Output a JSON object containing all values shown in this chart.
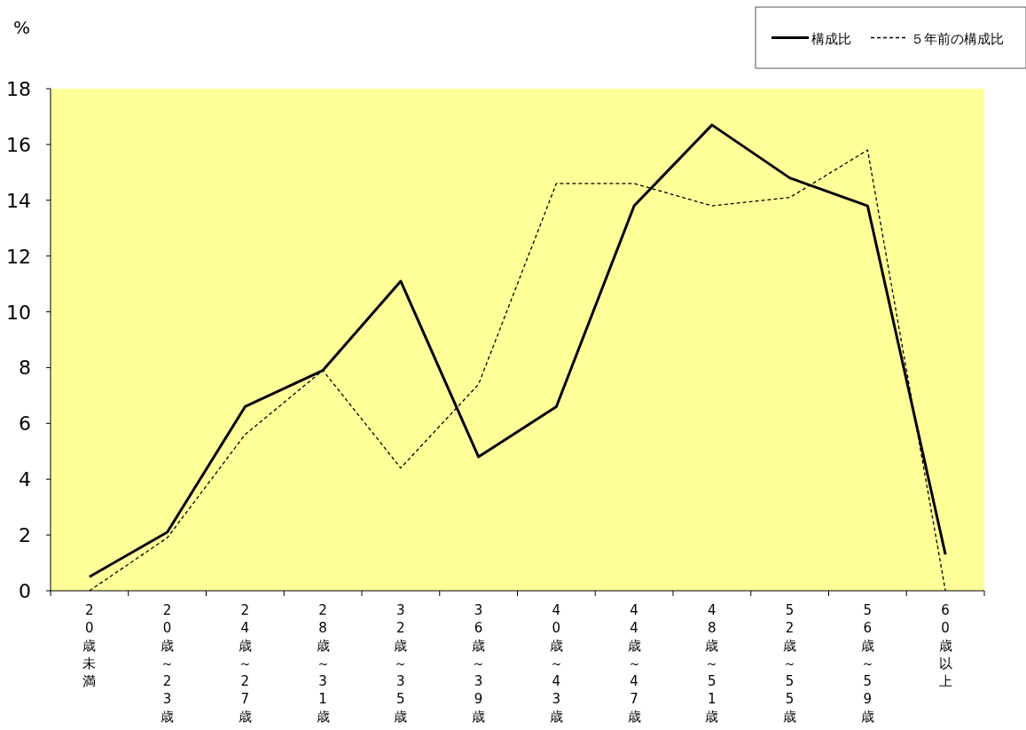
{
  "chart_data": {
    "type": "line",
    "ylabel": "%",
    "categories": [
      "20歳未満",
      "20歳～23歳",
      "24歳～27歳",
      "28歳～31歳",
      "32歳～35歳",
      "36歳～39歳",
      "40歳～43歳",
      "44歳～47歳",
      "48歳～51歳",
      "52歳～55歳",
      "56歳～59歳",
      "60歳以上"
    ],
    "series": [
      {
        "name": "構成比",
        "color": "#000000",
        "line_style": "solid",
        "values": [
          0.5,
          2.1,
          6.6,
          7.9,
          11.1,
          4.8,
          6.6,
          13.8,
          16.7,
          14.8,
          13.8,
          1.3
        ]
      },
      {
        "name": "５年前の構成比",
        "color": "#000000",
        "line_style": "dashed",
        "values": [
          0,
          1.9,
          5.6,
          7.9,
          4.4,
          7.4,
          14.6,
          14.6,
          13.8,
          14.1,
          15.8,
          0
        ]
      }
    ],
    "ylim": [
      0,
      18
    ],
    "yticks": [
      0,
      2,
      4,
      6,
      8,
      10,
      12,
      14,
      16,
      18
    ],
    "legend": "top right"
  }
}
